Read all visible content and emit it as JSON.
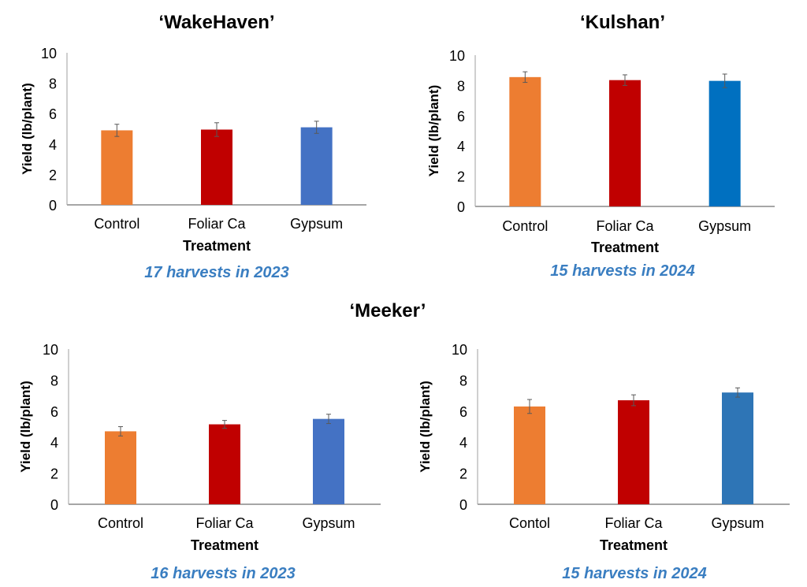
{
  "headings": [
    "‘WakeHaven’",
    "‘Kulshan’",
    "‘Meeker’"
  ],
  "chart_data": [
    {
      "type": "bar",
      "title": "‘WakeHaven’",
      "caption": "17 harvests in 2023",
      "xlabel": "Treatment",
      "ylabel": "Yield (lb/plant)",
      "ylim": [
        0,
        10
      ],
      "yticks": [
        0,
        2,
        4,
        6,
        8,
        10
      ],
      "grid": false,
      "categories": [
        "Control",
        "Foliar Ca",
        "Gypsum"
      ],
      "values": [
        4.9,
        4.95,
        5.1
      ],
      "errors": [
        0.4,
        0.45,
        0.4
      ],
      "colors": [
        "#ed7d31",
        "#c00000",
        "#4472c4"
      ]
    },
    {
      "type": "bar",
      "title": "‘Kulshan’",
      "caption": "15 harvests in 2024",
      "xlabel": "Treatment",
      "ylabel": "Yield (lb/plant)",
      "ylim": [
        0,
        10
      ],
      "yticks": [
        0,
        2,
        4,
        6,
        8,
        10
      ],
      "grid": false,
      "categories": [
        "Control",
        "Foliar Ca",
        "Gypsum"
      ],
      "values": [
        8.55,
        8.35,
        8.3
      ],
      "errors": [
        0.35,
        0.35,
        0.45
      ],
      "colors": [
        "#ed7d31",
        "#c00000",
        "#0070c0"
      ]
    },
    {
      "type": "bar",
      "title": "‘Meeker’",
      "caption": "16 harvests in 2023",
      "xlabel": "Treatment",
      "ylabel": "Yield (lb/plant)",
      "ylim": [
        0,
        10
      ],
      "yticks": [
        0,
        2,
        4,
        6,
        8,
        10
      ],
      "grid": false,
      "categories": [
        "Control",
        "Foliar Ca",
        "Gypsum"
      ],
      "values": [
        4.7,
        5.15,
        5.5
      ],
      "errors": [
        0.3,
        0.25,
        0.3
      ],
      "colors": [
        "#ed7d31",
        "#c00000",
        "#4472c4"
      ]
    },
    {
      "type": "bar",
      "title": "‘Meeker’",
      "caption": "15 harvests in 2024",
      "xlabel": "Treatment",
      "ylabel": "Yield (lb/plant)",
      "ylim": [
        0,
        10
      ],
      "yticks": [
        0,
        2,
        4,
        6,
        8,
        10
      ],
      "grid": false,
      "categories": [
        "Contol",
        "Foliar Ca",
        "Gypsum"
      ],
      "values": [
        6.3,
        6.7,
        7.2
      ],
      "errors": [
        0.45,
        0.35,
        0.3
      ],
      "colors": [
        "#ed7d31",
        "#c00000",
        "#2e75b6"
      ]
    }
  ]
}
